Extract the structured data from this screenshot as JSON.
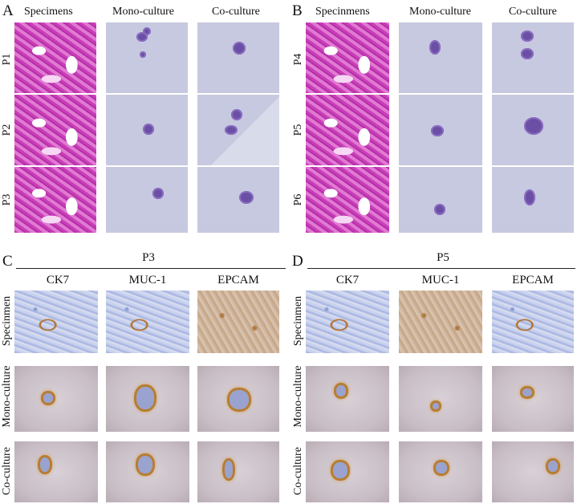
{
  "panels": {
    "A": {
      "letter": "A",
      "col_headers": [
        "Specimens",
        "Mono-culture",
        "Co-culture"
      ],
      "rows": [
        "P1",
        "P2",
        "P3"
      ]
    },
    "B": {
      "letter": "B",
      "col_headers": [
        "Specinmens",
        "Mono-culture",
        "Co-culture"
      ],
      "rows": [
        "P4",
        "P5",
        "P6"
      ]
    },
    "C": {
      "letter": "C",
      "patient": "P3",
      "markers": [
        "CK7",
        "MUC-1",
        "EPCAM"
      ],
      "rows": [
        "Specinmen",
        "Mono-culture",
        "Co-culture"
      ]
    },
    "D": {
      "letter": "D",
      "patient": "P5",
      "markers": [
        "CK7",
        "MUC-1",
        "EPCAM"
      ],
      "rows": [
        "Specinmen",
        "Mono-culture",
        "Co-culture"
      ]
    }
  }
}
